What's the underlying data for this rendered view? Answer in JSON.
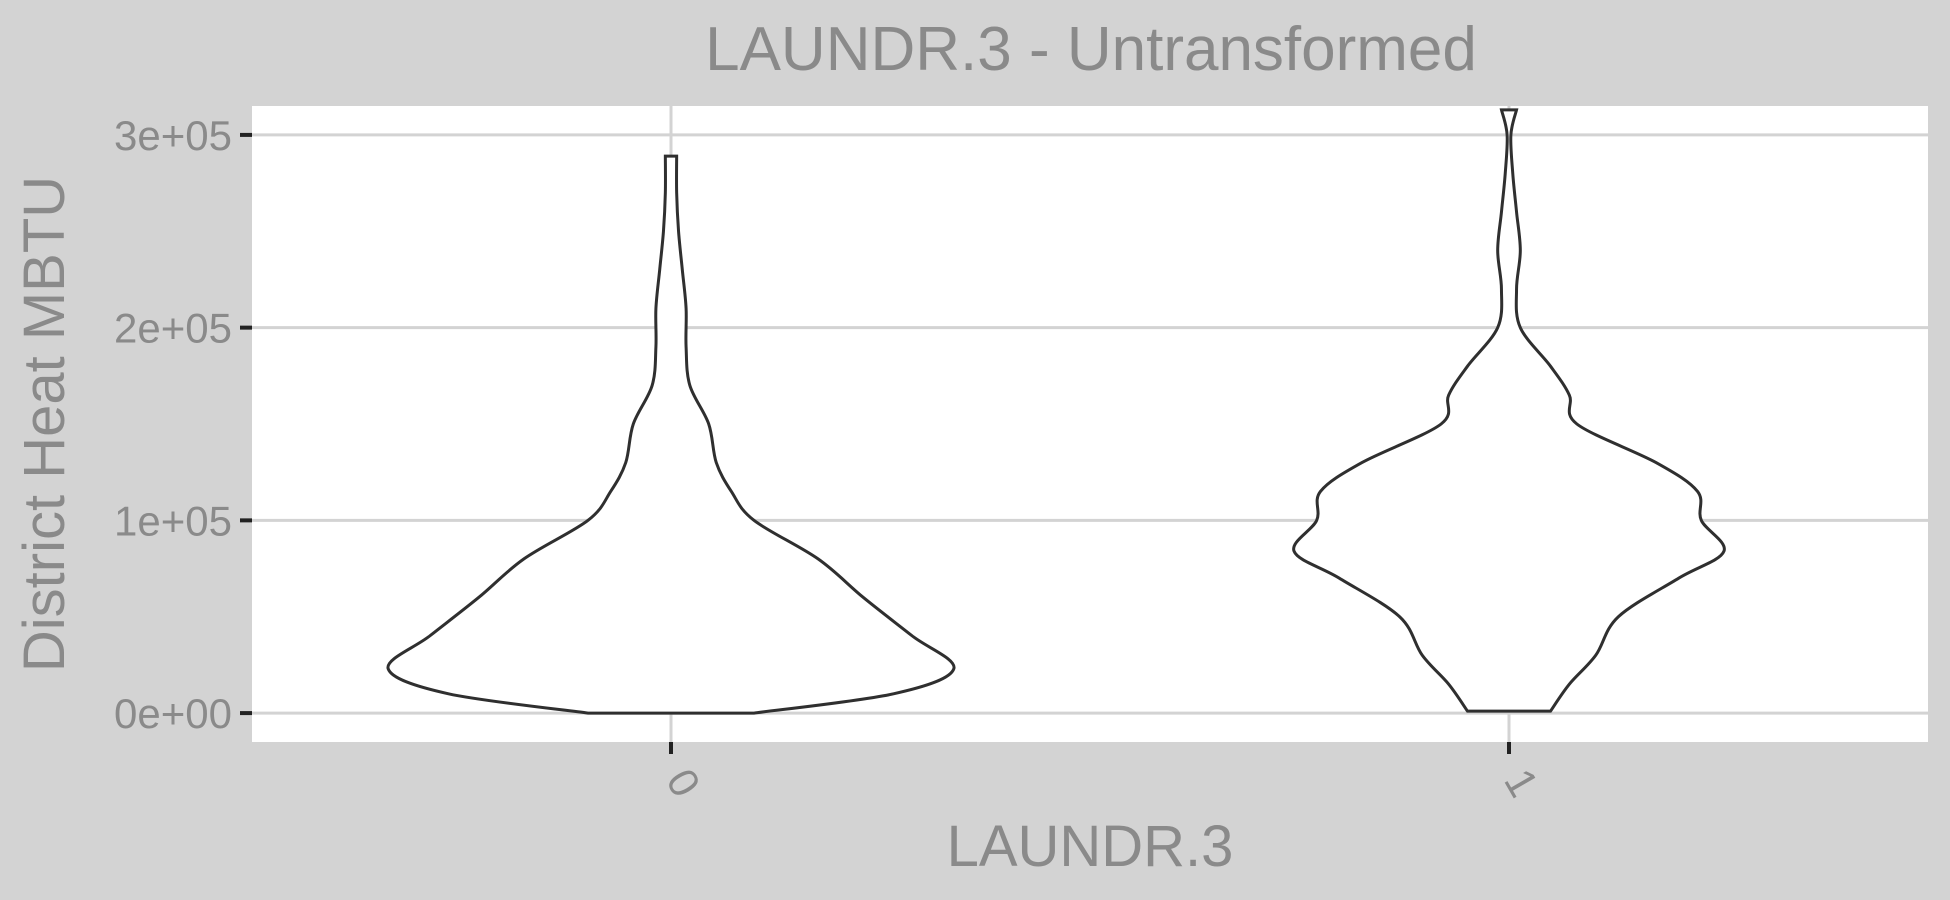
{
  "chart_data": {
    "type": "violin",
    "title": "LAUNDR.3 - Untransformed",
    "xlabel": "LAUNDR.3",
    "ylabel": "District Heat MBTU",
    "categories": [
      "0",
      "1"
    ],
    "ylim": [
      -15000,
      315000
    ],
    "yticks": [
      {
        "value": 0,
        "label": "0e+00"
      },
      {
        "value": 100000,
        "label": "1e+05"
      },
      {
        "value": 200000,
        "label": "2e+05"
      },
      {
        "value": 300000,
        "label": "3e+05"
      }
    ],
    "grid": true,
    "legend": "none",
    "violins": [
      {
        "category": "0",
        "y_min": 0,
        "y_max": 289000,
        "profile": [
          [
            0,
            0.22
          ],
          [
            10000,
            0.59
          ],
          [
            23000,
            0.75
          ],
          [
            40000,
            0.64
          ],
          [
            60000,
            0.51
          ],
          [
            80000,
            0.39
          ],
          [
            100000,
            0.22
          ],
          [
            115000,
            0.16
          ],
          [
            130000,
            0.12
          ],
          [
            150000,
            0.1
          ],
          [
            170000,
            0.05
          ],
          [
            190000,
            0.04
          ],
          [
            210000,
            0.04
          ],
          [
            230000,
            0.03
          ],
          [
            250000,
            0.02
          ],
          [
            270000,
            0.015
          ],
          [
            289000,
            0.015
          ]
        ]
      },
      {
        "category": "1",
        "y_min": 1000,
        "y_max": 313000,
        "profile": [
          [
            1000,
            0.11
          ],
          [
            15000,
            0.16
          ],
          [
            30000,
            0.23
          ],
          [
            50000,
            0.29
          ],
          [
            70000,
            0.45
          ],
          [
            84000,
            0.57
          ],
          [
            100000,
            0.51
          ],
          [
            115000,
            0.5
          ],
          [
            130000,
            0.39
          ],
          [
            150000,
            0.18
          ],
          [
            165000,
            0.16
          ],
          [
            180000,
            0.11
          ],
          [
            200000,
            0.03
          ],
          [
            220000,
            0.02
          ],
          [
            240000,
            0.03
          ],
          [
            260000,
            0.02
          ],
          [
            280000,
            0.01
          ],
          [
            300000,
            0.005
          ],
          [
            313000,
            0.02
          ]
        ]
      }
    ]
  }
}
